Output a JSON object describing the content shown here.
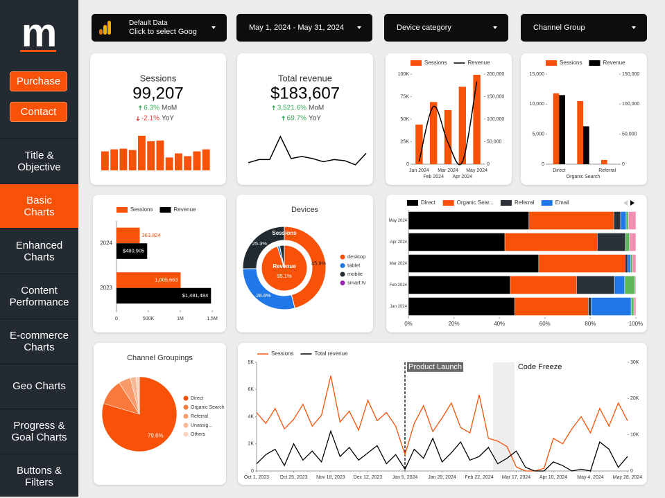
{
  "sidebar": {
    "logo": "m",
    "buttons": [
      "Purchase",
      "Contact"
    ],
    "nav": [
      {
        "label": "Title & Objective"
      },
      {
        "label": "Basic Charts",
        "active": true
      },
      {
        "label": "Enhanced Charts"
      },
      {
        "label": "Content Performance"
      },
      {
        "label": "E-commerce Charts"
      },
      {
        "label": "Geo Charts"
      },
      {
        "label": "Progress & Goal Charts"
      },
      {
        "label": "Buttons & Filters"
      }
    ]
  },
  "filters": [
    {
      "title": "Default Data",
      "value": "Click to select Goog"
    },
    {
      "value": "May 1, 2024 - May 31, 2024"
    },
    {
      "value": "Device category"
    },
    {
      "value": "Channel Group"
    }
  ],
  "scorecards": [
    {
      "label": "Sessions",
      "value": "99,207",
      "changes": [
        {
          "value": "6.3%",
          "period": "MoM",
          "direction": "up"
        },
        {
          "value": "-2.1%",
          "period": "YoY",
          "direction": "down"
        }
      ],
      "spark": {
        "type": "bar",
        "color": "#f85208",
        "values": [
          28,
          31,
          32,
          30,
          51,
          43,
          44,
          19,
          25,
          21,
          28,
          31
        ]
      }
    },
    {
      "label": "Total revenue",
      "value": "$183,607",
      "changes": [
        {
          "value": "3,521.6%",
          "period": "MoM",
          "direction": "up"
        },
        {
          "value": "69.7%",
          "period": "YoY",
          "direction": "up"
        }
      ],
      "spark": {
        "type": "line",
        "color": "#000000",
        "values": [
          8,
          11,
          11,
          33,
          12,
          14,
          12,
          9,
          11,
          10,
          6,
          17
        ]
      }
    }
  ],
  "chart_data": [
    {
      "type": "bar",
      "categories": [
        "Jan 2024",
        "Feb 2024",
        "Mar 2024",
        "Apr 2024",
        "May 2024"
      ],
      "series": [
        {
          "name": "Sessions",
          "mark": "bar",
          "color": "#f85208",
          "values": [
            44000,
            69000,
            60000,
            86000,
            99207
          ]
        },
        {
          "name": "Revenue",
          "mark": "line",
          "axis": "y2",
          "color": "#000000",
          "values": [
            6000,
            128000,
            48000,
            5070,
            183607
          ]
        }
      ],
      "ylim": [
        0,
        100000
      ],
      "yticks": [
        0,
        {
          "value": 25000,
          "label": "25K"
        },
        {
          "value": 50000,
          "label": "50K"
        },
        {
          "value": 75000,
          "label": "75K"
        },
        {
          "value": 100000,
          "label": "100K"
        }
      ],
      "y2lim": [
        0,
        200000
      ],
      "y2ticks": [
        0,
        {
          "value": 50000,
          "label": "50,000"
        },
        {
          "value": 100000,
          "label": "100,000"
        },
        {
          "value": 150000,
          "label": "150,000"
        },
        {
          "value": 200000,
          "label": "200,000"
        }
      ]
    },
    {
      "type": "bar",
      "categories": [
        "Direct",
        "Organic Search",
        "Referral"
      ],
      "series": [
        {
          "name": "Sessions",
          "mark": "bar",
          "color": "#f85208",
          "values": [
            11800,
            10500,
            700
          ]
        },
        {
          "name": "Revenue",
          "mark": "bar",
          "axis": "y2",
          "color": "#000000",
          "values": [
            115000,
            63000,
            0
          ]
        }
      ],
      "ylim": [
        0,
        15000
      ],
      "yticks": [
        0,
        {
          "value": 5000,
          "label": "5,000"
        },
        {
          "value": 10000,
          "label": "10,000"
        },
        {
          "value": 15000,
          "label": "15,000"
        }
      ],
      "y2lim": [
        0,
        150000
      ],
      "y2ticks": [
        0,
        {
          "value": 50000,
          "label": "50,000"
        },
        {
          "value": 100000,
          "label": "100,000"
        },
        {
          "value": 150000,
          "label": "150,000"
        }
      ]
    },
    {
      "type": "barh",
      "categories": [
        "2024",
        "2023"
      ],
      "series": [
        {
          "name": "Sessions",
          "color": "#f85208",
          "values": [
            363824,
            1005663
          ],
          "value_labels": [
            "363,824",
            "1,005,663"
          ]
        },
        {
          "name": "Revenue",
          "color": "#000000",
          "values": [
            480905,
            1481484
          ],
          "value_labels": [
            "$480,905",
            "$1,481,484"
          ]
        }
      ],
      "xlim": [
        0,
        1500000
      ],
      "xticks": [
        0,
        {
          "value": 500000,
          "label": "500K"
        },
        {
          "value": 1000000,
          "label": "1M"
        },
        {
          "value": 1500000,
          "label": "1.5M"
        }
      ]
    },
    {
      "type": "donut",
      "title": "Devices",
      "categories": [
        "desktop",
        "tablet",
        "mobile",
        "smart tv"
      ],
      "colors": [
        "#f85208",
        "#1f77e8",
        "#222a31",
        "#9c27b0"
      ],
      "series": [
        {
          "name": "Sessions",
          "values": [
            45.9,
            28.8,
            25.3,
            0
          ],
          "value_labels": [
            "45.9%",
            "28.8%",
            "25.3%",
            null
          ]
        },
        {
          "name": "Revenue",
          "values": [
            95.1,
            1.6,
            3.3,
            0
          ],
          "value_labels": [
            "95.1%",
            null,
            null,
            null
          ]
        }
      ]
    },
    {
      "type": "stacked100",
      "categories": [
        "May 2024",
        "Apr 2024",
        "Mar 2024",
        "Feb 2024",
        "Jan 2024"
      ],
      "series": [
        {
          "name": "Direct",
          "color": "#000000",
          "values": [
            53,
            42.4,
            57.3,
            44.8,
            46.7
          ]
        },
        {
          "name": "Organic Sear...",
          "color": "#f85208",
          "values": [
            37.3,
            40.6,
            37.9,
            29.1,
            32.4
          ]
        },
        {
          "name": "Referral",
          "color": "#2b3138",
          "values": [
            3,
            12.4,
            1.2,
            16.7,
            1.2
          ]
        },
        {
          "name": "Email",
          "color": "#1f77e8",
          "values": [
            2.4,
            0,
            1.2,
            4.5,
            17.6
          ]
        },
        {
          "color": "#5cb85c",
          "values": [
            1,
            1.8,
            1,
            4.5,
            1.2
          ]
        },
        {
          "color": "#f48fb1",
          "values": [
            3.3,
            2.8,
            1.4,
            0.4,
            0.9
          ]
        }
      ],
      "xlim": [
        0,
        100
      ],
      "xticks": [
        {
          "value": 0,
          "label": "0%"
        },
        {
          "value": 20,
          "label": "20%"
        },
        {
          "value": 40,
          "label": "40%"
        },
        {
          "value": 60,
          "label": "60%"
        },
        {
          "value": 80,
          "label": "80%"
        },
        {
          "value": 100,
          "label": "100%"
        }
      ]
    },
    {
      "type": "pie",
      "title": "Channel Groupings",
      "categories": [
        "Direct",
        "Organic Search",
        "Referral",
        "Unassig...",
        "Others"
      ],
      "colors": [
        "#f85208",
        "#f77a3c",
        "#f89a6a",
        "#fbb896",
        "#fcd3bd"
      ],
      "values": [
        79.6,
        11.3,
        5.2,
        2.5,
        1.4
      ],
      "value_labels": [
        "79.6%",
        null,
        null,
        null,
        null
      ]
    },
    {
      "type": "line",
      "categories": [
        "Oct 1, 2023",
        null,
        null,
        null,
        "Oct 25, 2023",
        null,
        null,
        null,
        "Nov 18, 2023",
        null,
        null,
        null,
        "Dec 12, 2023",
        null,
        null,
        null,
        "Jan 5, 2024",
        null,
        null,
        null,
        "Jan 29, 2024",
        null,
        null,
        null,
        "Feb 22, 2024",
        null,
        null,
        null,
        "Mar 17, 2024",
        null,
        null,
        null,
        "Apr 10, 2024",
        null,
        null,
        null,
        "May 4, 2024",
        null,
        null,
        null,
        "May 28, 2024"
      ],
      "series": [
        {
          "name": "Sessions",
          "mark": "line",
          "color": "#f85208",
          "values": [
            4300,
            3500,
            4600,
            3100,
            3800,
            4900,
            3300,
            4100,
            7000,
            3600,
            4400,
            3000,
            5200,
            3700,
            4300,
            3300,
            1200,
            3500,
            4800,
            2900,
            3900,
            5000,
            3200,
            2800,
            5600,
            2400,
            2200,
            1800,
            300,
            0,
            0,
            200,
            2400,
            2000,
            3100,
            4000,
            2800,
            4600,
            3300,
            5000,
            3700
          ]
        },
        {
          "name": "Total revenue",
          "mark": "line",
          "axis": "y2",
          "color": "#000000",
          "values": [
            2000,
            4500,
            6000,
            1500,
            7500,
            3000,
            5500,
            2500,
            11000,
            4000,
            6500,
            3000,
            5000,
            7000,
            2000,
            4500,
            500,
            6000,
            3500,
            9000,
            2500,
            5000,
            8000,
            3000,
            4000,
            6500,
            2000,
            3500,
            5500,
            1000,
            0,
            0,
            2500,
            1500,
            0,
            500,
            0,
            8000,
            6000,
            1000,
            4000
          ]
        }
      ],
      "ylim": [
        0,
        8000
      ],
      "yticks": [
        0,
        {
          "value": 2000,
          "label": "2K"
        },
        {
          "value": 4000,
          "label": "4K"
        },
        {
          "value": 6000,
          "label": "6K"
        },
        {
          "value": 8000,
          "label": "8K"
        }
      ],
      "y2lim": [
        0,
        30000
      ],
      "y2ticks": [
        0,
        {
          "value": 10000,
          "label": "10K"
        },
        {
          "value": 20000,
          "label": "20K"
        },
        {
          "value": 30000,
          "label": "30K"
        }
      ],
      "annotations": [
        {
          "label": "Product Launch",
          "style": "line",
          "x": 16
        },
        {
          "label": "Code Freeze",
          "style": "band",
          "x": [
            25.5,
            27.8
          ]
        }
      ]
    }
  ]
}
